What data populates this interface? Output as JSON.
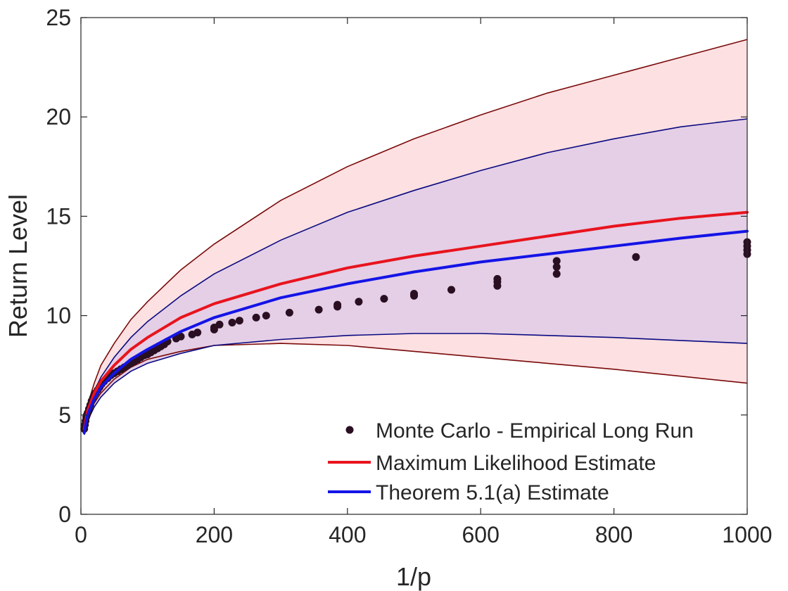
{
  "chart_data": {
    "type": "line",
    "title": "",
    "xlabel": "1/p",
    "ylabel": "Return Level",
    "xlim": [
      0,
      1000
    ],
    "ylim": [
      0,
      25
    ],
    "xticks": [
      0,
      200,
      400,
      600,
      800,
      1000
    ],
    "yticks": [
      0,
      5,
      10,
      15,
      20,
      25
    ],
    "grid": false,
    "legend_position": "bottom-right",
    "colors": {
      "mle": "#e8141e",
      "theorem": "#1414e6",
      "mle_ci_line": "#7a0a0a",
      "theorem_ci_line": "#0a0a80",
      "mle_ci_fill": "#fde0e2",
      "overlap_fill": "#e4cfe6",
      "points": "#2a0f22"
    },
    "legend": [
      {
        "key": "mc",
        "label": "Monte Carlo - Empirical Long Run",
        "marker": "dot"
      },
      {
        "key": "mle",
        "label": "Maximum Likelihood Estimate",
        "marker": "line"
      },
      {
        "key": "theorem",
        "label": "Theorem 5.1(a) Estimate",
        "marker": "line"
      }
    ],
    "series": [
      {
        "name": "Maximum Likelihood Estimate",
        "key": "mle",
        "x": [
          5,
          10,
          20,
          30,
          50,
          75,
          100,
          150,
          200,
          300,
          400,
          500,
          600,
          700,
          800,
          900,
          1000
        ],
        "y": [
          4.3,
          5.2,
          6.1,
          6.7,
          7.5,
          8.3,
          8.9,
          9.9,
          10.6,
          11.6,
          12.4,
          13.0,
          13.5,
          14.0,
          14.5,
          14.9,
          15.2
        ]
      },
      {
        "name": "Theorem 5.1(a) Estimate",
        "key": "theorem",
        "x": [
          5,
          10,
          20,
          30,
          50,
          75,
          100,
          150,
          200,
          300,
          400,
          500,
          600,
          700,
          800,
          900,
          1000
        ],
        "y": [
          4.1,
          5.0,
          5.8,
          6.4,
          7.1,
          7.8,
          8.3,
          9.2,
          9.9,
          10.9,
          11.6,
          12.2,
          12.7,
          13.1,
          13.5,
          13.9,
          14.25
        ]
      }
    ],
    "intervals": [
      {
        "name": "MLE confidence band",
        "key": "mle_ci",
        "x": [
          5,
          10,
          20,
          30,
          50,
          75,
          100,
          150,
          200,
          300,
          400,
          500,
          600,
          700,
          800,
          900,
          1000
        ],
        "upper": [
          4.5,
          5.5,
          6.6,
          7.5,
          8.6,
          9.8,
          10.7,
          12.3,
          13.6,
          15.8,
          17.5,
          18.9,
          20.1,
          21.2,
          22.1,
          23.0,
          23.9
        ],
        "lower": [
          4.2,
          4.9,
          5.6,
          6.1,
          6.8,
          7.4,
          7.8,
          8.2,
          8.5,
          8.6,
          8.5,
          8.2,
          7.9,
          7.6,
          7.3,
          6.95,
          6.6
        ]
      },
      {
        "name": "Theorem 5.1(a) confidence band",
        "key": "theorem_ci",
        "x": [
          5,
          10,
          20,
          30,
          50,
          75,
          100,
          150,
          200,
          300,
          400,
          500,
          600,
          700,
          800,
          900,
          1000
        ],
        "upper": [
          4.3,
          5.2,
          6.2,
          6.9,
          7.9,
          8.9,
          9.7,
          11.0,
          12.1,
          13.8,
          15.2,
          16.3,
          17.3,
          18.2,
          18.9,
          19.5,
          19.9
        ],
        "lower": [
          4.0,
          4.7,
          5.4,
          5.9,
          6.6,
          7.2,
          7.6,
          8.1,
          8.5,
          8.8,
          9.0,
          9.1,
          9.1,
          9.0,
          8.9,
          8.75,
          8.6
        ]
      }
    ],
    "scatter": {
      "name": "Monte Carlo - Empirical Long Run",
      "key": "mc",
      "x": [
        5,
        6,
        7,
        8,
        9,
        10,
        12,
        14,
        16,
        18,
        20,
        22,
        25,
        28,
        31,
        35,
        40,
        45,
        50,
        55,
        60,
        65,
        70,
        75,
        80,
        85,
        90,
        95,
        100,
        105,
        110,
        115,
        120,
        125,
        130,
        143,
        150,
        167,
        175,
        200,
        200,
        208,
        227,
        238,
        263,
        278,
        313,
        357,
        385,
        385,
        417,
        455,
        500,
        500,
        556,
        625,
        625,
        625,
        714,
        714,
        714,
        833,
        1000,
        1000,
        1000,
        1000
      ],
      "y": [
        4.3,
        4.5,
        4.7,
        4.9,
        5.0,
        5.1,
        5.3,
        5.5,
        5.7,
        5.85,
        6.0,
        6.1,
        6.25,
        6.4,
        6.55,
        6.7,
        6.85,
        7.0,
        7.1,
        7.2,
        7.3,
        7.4,
        7.5,
        7.6,
        7.7,
        7.8,
        7.9,
        8.0,
        8.05,
        8.15,
        8.25,
        8.35,
        8.45,
        8.55,
        8.7,
        8.85,
        8.95,
        9.05,
        9.15,
        9.3,
        9.4,
        9.55,
        9.65,
        9.75,
        9.9,
        10.0,
        10.15,
        10.3,
        10.45,
        10.55,
        10.7,
        10.85,
        11.0,
        11.1,
        11.3,
        11.5,
        11.7,
        11.85,
        12.1,
        12.45,
        12.75,
        12.95,
        13.1,
        13.3,
        13.5,
        13.7
      ]
    }
  }
}
